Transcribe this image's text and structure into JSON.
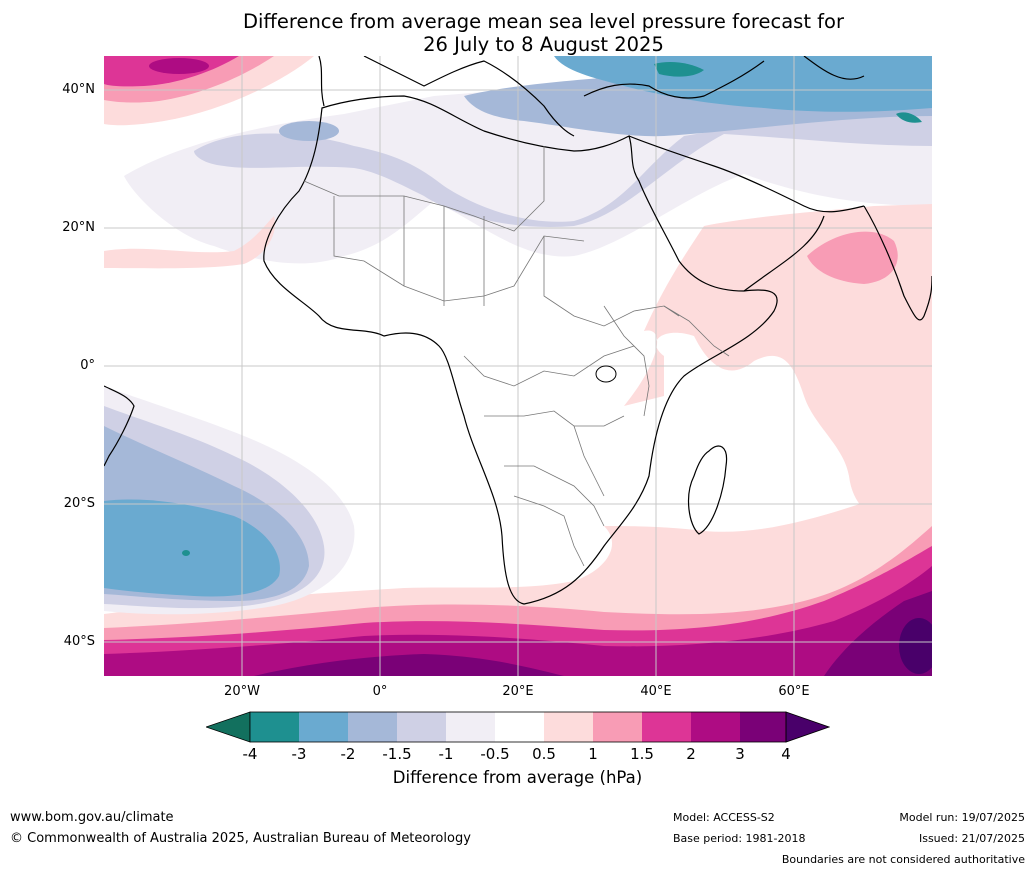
{
  "title": {
    "line1": "Difference from average mean sea level pressure forecast for",
    "line2": "26 July to 8 August 2025"
  },
  "map": {
    "lat_labels": [
      "40°N",
      "20°N",
      "0°",
      "20°S",
      "40°S"
    ],
    "lon_labels": [
      "20°W",
      "0°",
      "20°E",
      "40°E",
      "60°E"
    ],
    "gridline_color": "#c8c8c8"
  },
  "colorbar": {
    "ticks": [
      "-4",
      "-3",
      "-2",
      "-1.5",
      "-1",
      "-0.5",
      "0.5",
      "1",
      "1.5",
      "2",
      "3",
      "4"
    ],
    "colors": {
      "below_min": "#12705e",
      "n4_n3": "#1e9090",
      "n3_n2": "#6aaad0",
      "n2_n15": "#a5b8d8",
      "n15_n1": "#cfd0e5",
      "n1_n05": "#f1eef5",
      "n05_05": "#ffffff",
      "05_1": "#fddcdc",
      "1_15": "#f89cb5",
      "15_2": "#dd3596",
      "2_3": "#ae0c83",
      "3_4": "#7a0177",
      "above_max": "#49006a"
    },
    "label": "Difference from average (hPa)"
  },
  "footer": {
    "website": "www.bom.gov.au/climate",
    "copyright": "© Commonwealth of Australia 2025, Australian Bureau of Meteorology",
    "model": "Model: ACCESS-S2",
    "base_period": "Base period: 1981-2018",
    "model_run": "Model run: 19/07/2025",
    "issued": "Issued: 21/07/2025",
    "boundaries": "Boundaries are not considered authoritative"
  }
}
